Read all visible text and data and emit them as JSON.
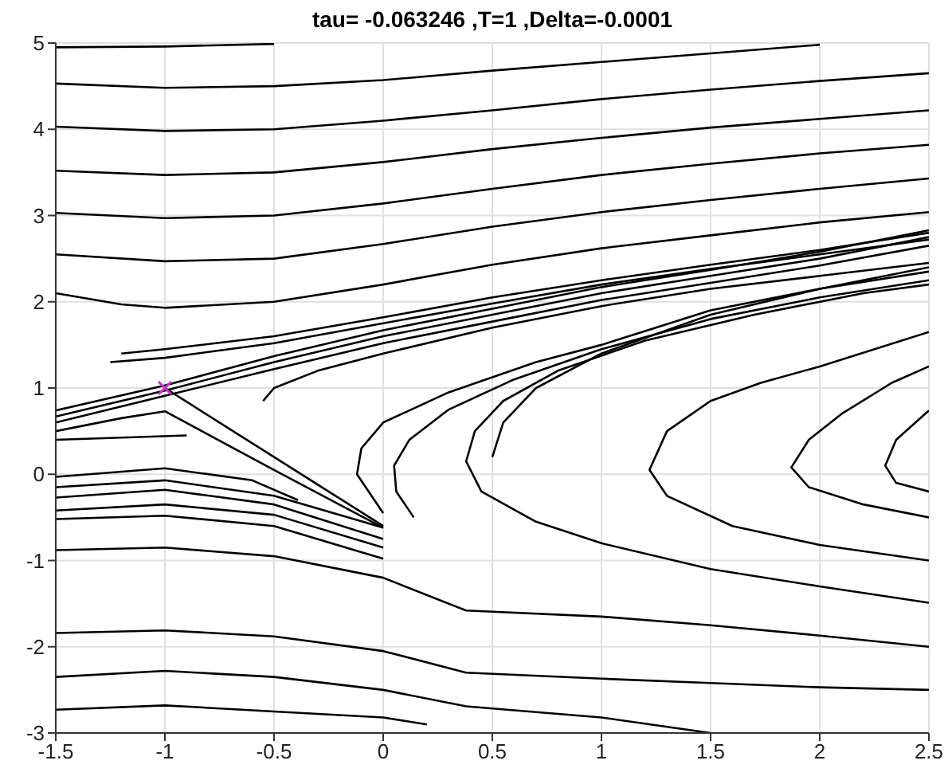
{
  "chart_data": {
    "type": "line",
    "title": "tau= -0.063246 ,T=1 ,Delta=-0.0001",
    "xlim": [
      -1.5,
      2.5
    ],
    "xticks": [
      -1.5,
      -1,
      -0.5,
      0,
      0.5,
      1,
      1.5,
      2,
      2.5
    ],
    "ylim": [
      -3,
      5
    ],
    "yticks": [
      -3,
      -2,
      -1,
      0,
      1,
      2,
      3,
      4,
      5
    ],
    "grid": true,
    "marker": "none",
    "line_style": "solid",
    "series": [
      {
        "color": "#000000",
        "x": [
          -1.5,
          -1,
          -0.5
        ],
        "values": [
          4.95,
          4.96,
          4.99
        ]
      },
      {
        "color": "#000000",
        "x": [
          -1.5,
          -1,
          -0.5,
          0,
          0.5,
          1,
          1.5,
          2
        ],
        "values": [
          4.53,
          4.48,
          4.5,
          4.57,
          4.68,
          4.78,
          4.88,
          4.98
        ]
      },
      {
        "color": "#000000",
        "x": [
          -1.5,
          -1,
          -0.5,
          0,
          0.5,
          1,
          1.5,
          2,
          2.5
        ],
        "values": [
          4.03,
          3.98,
          4.0,
          4.1,
          4.22,
          4.35,
          4.46,
          4.56,
          4.65
        ]
      },
      {
        "color": "#000000",
        "x": [
          -1.5,
          -1,
          -0.5,
          0,
          0.5,
          1,
          1.5,
          2,
          2.5
        ],
        "values": [
          3.52,
          3.47,
          3.5,
          3.62,
          3.77,
          3.9,
          4.02,
          4.12,
          4.22
        ]
      },
      {
        "color": "#000000",
        "x": [
          -1.5,
          -1,
          -0.5,
          0,
          0.5,
          1,
          1.5,
          2,
          2.5
        ],
        "values": [
          3.03,
          2.97,
          3.0,
          3.14,
          3.31,
          3.47,
          3.6,
          3.72,
          3.82
        ]
      },
      {
        "color": "#000000",
        "x": [
          -1.5,
          -1,
          -0.5,
          0,
          0.5,
          1,
          1.5,
          2,
          2.5
        ],
        "values": [
          2.55,
          2.47,
          2.5,
          2.67,
          2.87,
          3.04,
          3.18,
          3.31,
          3.43
        ]
      },
      {
        "color": "#000000",
        "x": [
          -1.5,
          -1.2,
          -1,
          -0.5,
          0,
          0.5,
          1,
          1.5,
          2,
          2.5
        ],
        "values": [
          2.1,
          1.97,
          1.93,
          2.0,
          2.2,
          2.43,
          2.62,
          2.77,
          2.92,
          3.04
        ]
      },
      {
        "color": "#000000",
        "x": [
          -1.2,
          -1,
          -0.5,
          0,
          0.5,
          1,
          1.5,
          2,
          2.5
        ],
        "values": [
          1.4,
          1.45,
          1.6,
          1.82,
          2.05,
          2.25,
          2.43,
          2.6,
          2.8
        ]
      },
      {
        "color": "#000000",
        "x": [
          -1.25,
          -1,
          -0.5,
          0,
          0.5,
          1,
          1.5,
          2,
          2.5
        ],
        "values": [
          1.3,
          1.35,
          1.52,
          1.75,
          1.98,
          2.2,
          2.38,
          2.55,
          2.72
        ]
      },
      {
        "color": "#000000",
        "x": [
          -1.5,
          -1,
          -0.5,
          0,
          0.5,
          1,
          1.5,
          2,
          2.5
        ],
        "values": [
          0.67,
          0.97,
          1.3,
          1.6,
          1.85,
          2.1,
          2.3,
          2.5,
          2.75
        ]
      },
      {
        "color": "#000000",
        "x": [
          -1.5,
          -1,
          -0.5,
          0,
          0.5,
          1,
          1.5,
          2,
          2.5
        ],
        "values": [
          0.74,
          1.03,
          1.37,
          1.67,
          1.92,
          2.17,
          2.37,
          2.58,
          2.83
        ]
      },
      {
        "color": "#000000",
        "x": [
          -1.5,
          -1,
          -0.5,
          0,
          0.5,
          1,
          1.5,
          2,
          2.5
        ],
        "values": [
          0.6,
          0.91,
          1.22,
          1.52,
          1.77,
          2.02,
          2.22,
          2.42,
          2.65
        ]
      },
      {
        "color": "#000000",
        "x": [
          -0.55,
          -0.5,
          -0.3,
          0,
          0.5,
          1,
          1.5,
          2,
          2.5
        ],
        "values": [
          0.85,
          1.0,
          1.2,
          1.4,
          1.7,
          1.95,
          2.15,
          2.3,
          2.45
        ]
      },
      {
        "color": "#000000",
        "x": [
          0,
          -0.12,
          -0.1,
          0,
          0.3,
          0.7,
          1,
          1.5,
          2,
          2.5
        ],
        "values": [
          -0.45,
          0,
          0.3,
          0.6,
          0.95,
          1.3,
          1.5,
          1.9,
          2.15,
          2.35
        ]
      },
      {
        "color": "#000000",
        "x": [
          0.14,
          0.06,
          0.05,
          0.12,
          0.3,
          0.6,
          1,
          1.5,
          2,
          2.5
        ],
        "values": [
          -0.5,
          -0.2,
          0.1,
          0.4,
          0.75,
          1.1,
          1.45,
          1.8,
          2.05,
          2.25
        ]
      },
      {
        "color": "#000000",
        "x": [
          0.5,
          0.55,
          0.7,
          1,
          1.5,
          2,
          2.5
        ],
        "values": [
          0.2,
          0.6,
          1.0,
          1.4,
          1.85,
          2.15,
          2.4
        ]
      },
      {
        "color": "#000000",
        "x": [
          2.5,
          2,
          1.5,
          1,
          0.7,
          0.45,
          0.38,
          0.42,
          0.55,
          0.8,
          1.2,
          1.7,
          2.2,
          2.5
        ],
        "values": [
          -1.49,
          -1.3,
          -1.1,
          -0.8,
          -0.55,
          -0.2,
          0.15,
          0.5,
          0.85,
          1.2,
          1.55,
          1.85,
          2.1,
          2.2
        ]
      },
      {
        "color": "#000000",
        "x": [
          2.5,
          2,
          1.6,
          1.3,
          1.22,
          1.3,
          1.5,
          1.73,
          2,
          2.5
        ],
        "values": [
          -1.0,
          -0.82,
          -0.6,
          -0.25,
          0.05,
          0.5,
          0.85,
          1.06,
          1.25,
          1.65
        ]
      },
      {
        "color": "#000000",
        "x": [
          2.5,
          2.2,
          1.95,
          1.87,
          1.95,
          2.1,
          2.33,
          2.5
        ],
        "values": [
          -0.5,
          -0.35,
          -0.15,
          0.08,
          0.4,
          0.7,
          1.06,
          1.25
        ]
      },
      {
        "color": "#000000",
        "x": [
          2.5,
          2.35,
          2.3,
          2.35,
          2.5
        ],
        "values": [
          -0.2,
          -0.1,
          0.1,
          0.4,
          0.74
        ]
      },
      {
        "color": "#000000",
        "x": [
          -1.5,
          -1,
          -0.5,
          0,
          0.38,
          1,
          1.5,
          2,
          2.5
        ],
        "values": [
          -0.88,
          -0.85,
          -0.95,
          -1.2,
          -1.58,
          -1.65,
          -1.75,
          -1.87,
          -2.0
        ]
      },
      {
        "color": "#000000",
        "x": [
          -1.5,
          -1,
          -0.5,
          0,
          0.38,
          1,
          1.5,
          2,
          2.5
        ],
        "values": [
          -1.84,
          -1.81,
          -1.88,
          -2.05,
          -2.3,
          -2.37,
          -2.42,
          -2.47,
          -2.5
        ]
      },
      {
        "color": "#000000",
        "x": [
          -1.5,
          -1,
          -0.5,
          0,
          0.38,
          1,
          1.5
        ],
        "values": [
          -2.35,
          -2.28,
          -2.35,
          -2.5,
          -2.69,
          -2.82,
          -3.0
        ]
      },
      {
        "color": "#000000",
        "x": [
          -1.5,
          -1,
          -0.5,
          0,
          0.2
        ],
        "values": [
          -2.73,
          -2.68,
          -2.75,
          -2.82,
          -2.9
        ]
      },
      {
        "color": "#000000",
        "x": [
          -1.5,
          -1,
          -0.6,
          -0.39
        ],
        "values": [
          -0.03,
          0.07,
          -0.07,
          -0.3
        ]
      },
      {
        "color": "#000000",
        "x": [
          -1.5,
          -1,
          -0.5,
          0
        ],
        "values": [
          -0.15,
          -0.07,
          -0.25,
          -0.62
        ]
      },
      {
        "color": "#000000",
        "x": [
          -1.5,
          -1,
          -0.5,
          0
        ],
        "values": [
          -0.27,
          -0.18,
          -0.35,
          -0.75
        ]
      },
      {
        "color": "#000000",
        "x": [
          -1.5,
          -1,
          -0.5,
          0
        ],
        "values": [
          -0.42,
          -0.35,
          -0.47,
          -0.85
        ]
      },
      {
        "color": "#000000",
        "x": [
          -1.5,
          -1,
          -0.5,
          0
        ],
        "values": [
          -0.52,
          -0.48,
          -0.6,
          -0.98
        ]
      },
      {
        "color": "#000000",
        "x": [
          -1,
          -0.5,
          0
        ],
        "values": [
          1.0,
          0.2,
          -0.6
        ]
      },
      {
        "color": "#000000",
        "x": [
          -1.5,
          -1.2,
          -1,
          -0.5,
          0
        ],
        "values": [
          0.5,
          0.65,
          0.73,
          0.05,
          -0.62
        ]
      },
      {
        "color": "#000000",
        "x": [
          -1.5,
          -0.9
        ],
        "values": [
          0.4,
          0.45
        ]
      },
      {
        "type": "scatter",
        "marker": "cross",
        "color": "#cc33cc",
        "x": [
          -1
        ],
        "values": [
          1.0
        ]
      }
    ]
  }
}
